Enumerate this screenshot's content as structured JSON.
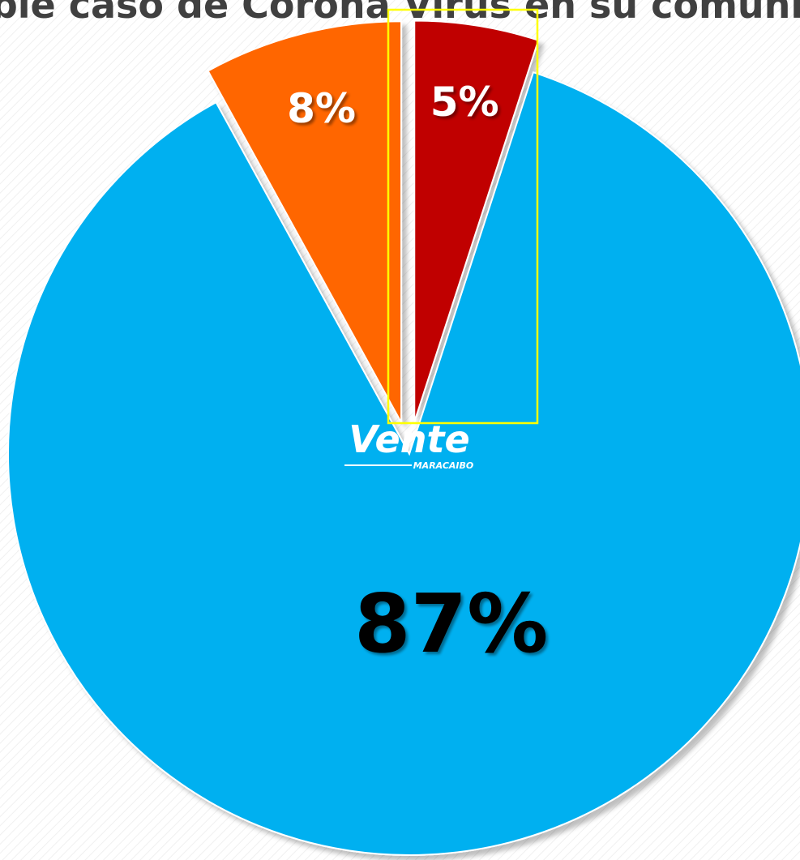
{
  "chart_data": {
    "type": "pie",
    "title": "ble caso de Corona Virus en su comuni",
    "values": [
      5,
      87,
      8
    ],
    "value_labels": [
      "5%",
      "87%",
      "8%"
    ],
    "colors": [
      "#c00000",
      "#00b0f0",
      "#ff6600"
    ],
    "label_colors": [
      "#ffffff",
      "#000000",
      "#ffffff"
    ],
    "logo": {
      "name": "Vente",
      "subtitle": "MARACAIBO"
    }
  }
}
